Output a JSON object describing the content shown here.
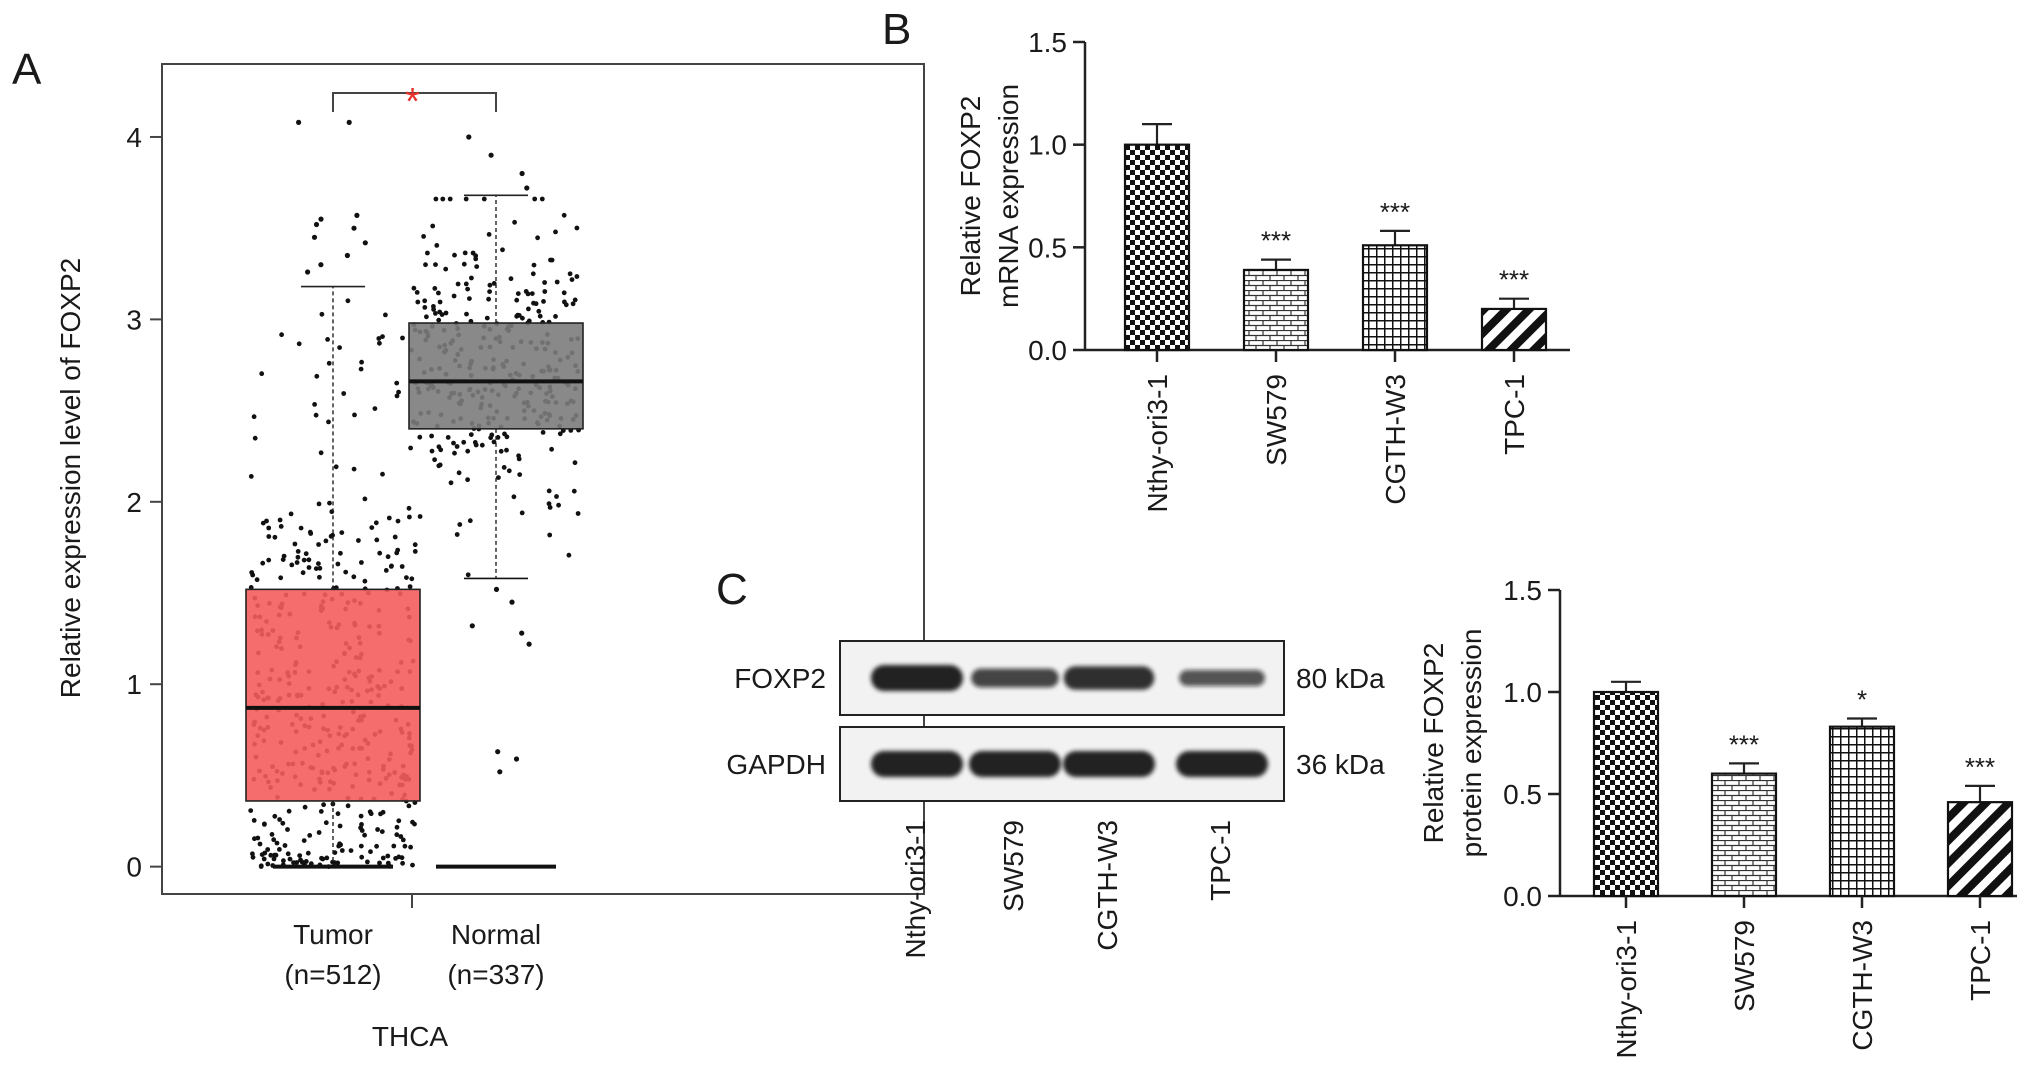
{
  "panels": {
    "a": {
      "letter": "A"
    },
    "b": {
      "letter": "B"
    },
    "c": {
      "letter": "C"
    }
  },
  "chart_data": [
    {
      "panel": "A",
      "type": "box",
      "ylabel": "Relative expression level of FOXP2",
      "xlabel": "THCA",
      "ylim": [
        -0.15,
        4.4
      ],
      "yticks": [
        0,
        1,
        2,
        3,
        4
      ],
      "categories": [
        "Tumor",
        "Normal"
      ],
      "category_labels": [
        [
          "Tumor",
          "(n=512)"
        ],
        [
          "Normal",
          "(n=337)"
        ]
      ],
      "colors": {
        "Tumor": "#f45d5d",
        "Normal": "#7c7c7c"
      },
      "boxes": [
        {
          "name": "Tumor",
          "n": 512,
          "q1": 0.36,
          "median": 0.87,
          "q3": 1.52,
          "whisker_low": 0,
          "whisker_high": 3.18,
          "outliers_high": [
            4.08,
            4.08,
            3.57,
            3.55,
            3.52,
            3.5,
            3.45,
            3.42,
            3.35,
            3.3,
            3.26
          ]
        },
        {
          "name": "Normal",
          "n": 337,
          "q1": 2.4,
          "median": 2.66,
          "q3": 2.98,
          "whisker_low": 1.58,
          "whisker_high": 3.68,
          "outliers_low": [
            1.52,
            1.45,
            1.32,
            1.28,
            1.22,
            0.63,
            0.59,
            0.52
          ],
          "outliers_high": [
            4.0,
            3.9,
            3.8,
            3.72
          ]
        }
      ],
      "significance": "*",
      "significance_color": "#e8312a"
    },
    {
      "panel": "B",
      "type": "bar",
      "ylabel": [
        "Relative FOXP2",
        "mRNA expression"
      ],
      "ylim": [
        0,
        1.5
      ],
      "yticks": [
        "0.0",
        "0.5",
        "1.0",
        "1.5"
      ],
      "categories": [
        "Nthy-ori3-1",
        "SW579",
        "CGTH-W3",
        "TPC-1"
      ],
      "values": [
        1.0,
        0.39,
        0.51,
        0.2
      ],
      "errors": [
        0.1,
        0.05,
        0.07,
        0.05
      ],
      "patterns": [
        "checker",
        "brick",
        "grid",
        "diagonal"
      ],
      "significance": [
        "",
        "***",
        "***",
        "***"
      ]
    },
    {
      "panel": "C",
      "type": "bar",
      "ylabel": [
        "Relative FOXP2",
        "protein expression"
      ],
      "ylim": [
        0,
        1.5
      ],
      "yticks": [
        "0.0",
        "0.5",
        "1.0",
        "1.5"
      ],
      "categories": [
        "Nthy-ori3-1",
        "SW579",
        "CGTH-W3",
        "TPC-1"
      ],
      "values": [
        1.0,
        0.6,
        0.83,
        0.46
      ],
      "errors": [
        0.05,
        0.05,
        0.04,
        0.08
      ],
      "patterns": [
        "checker",
        "brick",
        "grid",
        "diagonal"
      ],
      "significance": [
        "",
        "***",
        "*",
        "***"
      ]
    }
  ],
  "blot": {
    "rows": [
      {
        "label": "FOXP2",
        "size": "80 kDa",
        "intensities": [
          1.0,
          0.55,
          0.85,
          0.38
        ]
      },
      {
        "label": "GAPDH",
        "size": "36 kDa",
        "intensities": [
          1.0,
          1.0,
          1.0,
          1.0
        ]
      }
    ],
    "lanes": [
      "Nthy-ori3-1",
      "SW579",
      "CGTH-W3",
      "TPC-1"
    ]
  }
}
